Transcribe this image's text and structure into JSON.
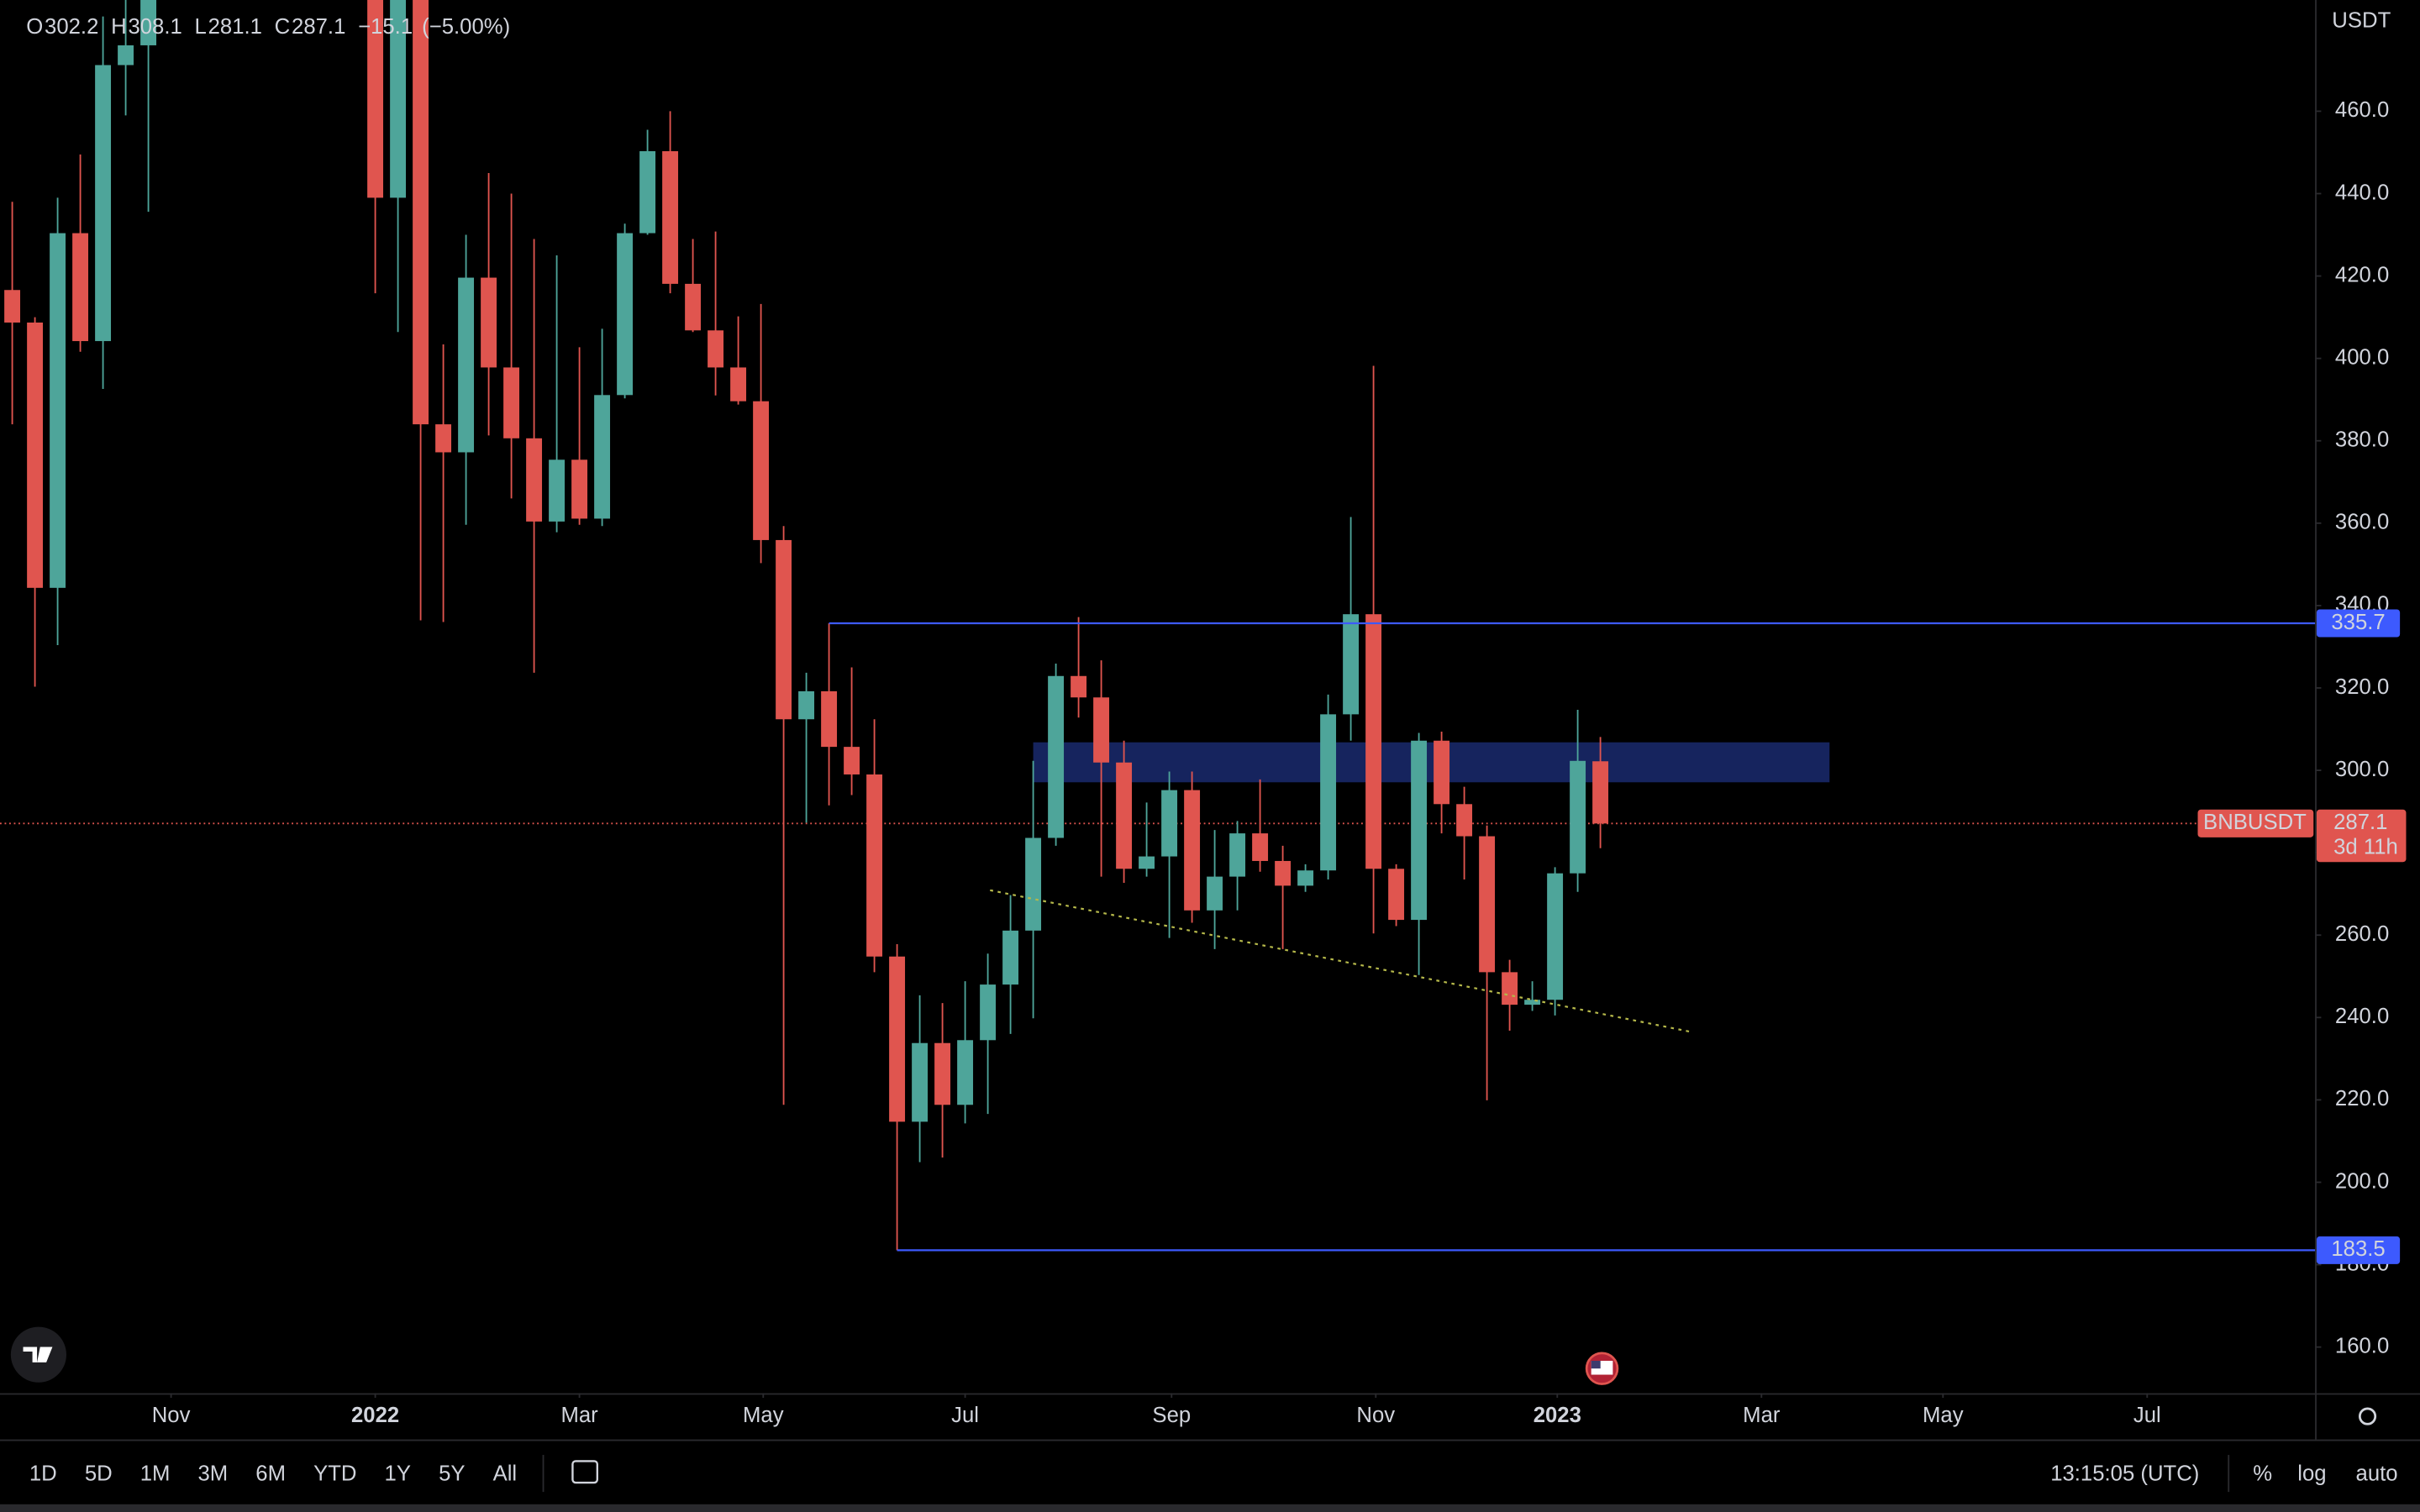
{
  "chart_data": {
    "type": "candlestick",
    "symbol": "BNBUSDT",
    "currency": "USDT",
    "ohlc_labels": [
      "O",
      "H",
      "L",
      "C"
    ],
    "change": "−15.1",
    "change_pct": "(−5.00%)",
    "countdown": "3d 11h",
    "log_scale": false,
    "up_color": "#4ea59a",
    "down_color": "#e0554f",
    "x": [
      0,
      1,
      2,
      3,
      4,
      5,
      6,
      16,
      17,
      18,
      19,
      20,
      21,
      22,
      23,
      24,
      25,
      26,
      27,
      28,
      29,
      30,
      31,
      32,
      33,
      34,
      35,
      36,
      37,
      38,
      39,
      40,
      41,
      42,
      43,
      44,
      45,
      46,
      47,
      48,
      49,
      50,
      51,
      52,
      53,
      54,
      55,
      56,
      57,
      58,
      59,
      60,
      61,
      62,
      63,
      64,
      65,
      66,
      67,
      68,
      69,
      70
    ],
    "open": [
      416.6,
      408.7,
      344.3,
      430.4,
      404.2,
      471.2,
      476,
      500,
      439,
      500,
      384,
      377.2,
      419.6,
      397.8,
      380.6,
      360.4,
      375.4,
      361.1,
      391.1,
      430.4,
      450.3,
      418.1,
      406.8,
      397.8,
      389.6,
      355.9,
      312.4,
      319.2,
      305.7,
      299,
      254.8,
      214.7,
      233.8,
      218.8,
      234.5,
      248,
      261.1,
      283.6,
      322.9,
      317.7,
      301.9,
      276.1,
      279.1,
      295.2,
      266,
      274.2,
      284.7,
      278,
      272,
      275.7,
      313.6,
      337.9,
      276.1,
      263.7,
      307.2,
      291.8,
      284,
      251,
      243.1,
      244.3,
      275,
      302.2
    ],
    "high": [
      438,
      410,
      439,
      449.5,
      483,
      487,
      510,
      510,
      505,
      505,
      403.4,
      430,
      445,
      440,
      429,
      425,
      402.7,
      407.2,
      432.7,
      455.5,
      460,
      429,
      430.8,
      410.2,
      413.2,
      359.3,
      323.7,
      335.7,
      325,
      312.4,
      257.8,
      245.4,
      243.5,
      248.8,
      255.5,
      269.7,
      302.3,
      325.9,
      337.2,
      326.7,
      307.2,
      292.2,
      299.7,
      299.7,
      285.5,
      287.7,
      297.8,
      281.7,
      277.2,
      318.4,
      361.5,
      398.2,
      277.2,
      309.1,
      309.4,
      296,
      286.6,
      254,
      248.8,
      276.5,
      314.7,
      308.1
    ],
    "low": [
      384,
      320.3,
      330.4,
      401.6,
      392.6,
      459,
      435.6,
      415.8,
      406.4,
      336.4,
      336,
      359.6,
      381.3,
      366,
      323.7,
      357.8,
      359.6,
      359.3,
      390.3,
      430,
      415.8,
      406.4,
      391,
      388.8,
      350.3,
      218.8,
      287.3,
      291.5,
      294,
      251,
      183.5,
      204.9,
      206,
      214.3,
      216.6,
      236,
      239.8,
      281.7,
      312.8,
      274.2,
      272.7,
      274.2,
      259.3,
      263,
      256.6,
      266,
      275.4,
      256.6,
      270.5,
      273.5,
      307.2,
      260.4,
      262.2,
      250.3,
      284.7,
      273.5,
      219.9,
      236.8,
      241.6,
      240.5,
      270.5,
      281.1
    ],
    "close": [
      408.7,
      344.3,
      430.4,
      404.2,
      471.2,
      476,
      495,
      439,
      500,
      384,
      377.2,
      419.6,
      397.8,
      380.6,
      360.4,
      375.4,
      361.1,
      391.1,
      430.4,
      450.3,
      418.1,
      406.8,
      397.8,
      389.6,
      355.9,
      312.4,
      319.2,
      305.7,
      299,
      254.8,
      214.7,
      233.8,
      218.8,
      234.5,
      248,
      261.1,
      283.6,
      322.9,
      317.7,
      301.9,
      276.1,
      279.1,
      295.2,
      266,
      274.2,
      284.7,
      278,
      272,
      275.7,
      313.6,
      337.9,
      276.1,
      263.7,
      307.2,
      291.8,
      284,
      251,
      243.1,
      244.3,
      275,
      302.3,
      287.1
    ],
    "xlim": [
      -0.54,
      101.5
    ],
    "xticks": [
      {
        "value": 7.0,
        "label": "Nov"
      },
      {
        "value": 16.0,
        "label": "2022"
      },
      {
        "value": 25.0,
        "label": "Mar"
      },
      {
        "value": 33.1,
        "label": "May"
      },
      {
        "value": 42.0,
        "label": "Jul"
      },
      {
        "value": 51.1,
        "label": "Sep"
      },
      {
        "value": 60.1,
        "label": "Nov"
      },
      {
        "value": 68.1,
        "label": "2023"
      },
      {
        "value": 77.1,
        "label": "Mar"
      },
      {
        "value": 85.1,
        "label": "May"
      },
      {
        "value": 94.1,
        "label": "Jul"
      }
    ],
    "ylim": [
      148.8,
      487
    ],
    "yticks": [
      {
        "value": 160,
        "label": "160.0"
      },
      {
        "value": 180,
        "label": "180.0"
      },
      {
        "value": 200,
        "label": "200.0"
      },
      {
        "value": 220,
        "label": "220.0"
      },
      {
        "value": 240,
        "label": "240.0"
      },
      {
        "value": 260,
        "label": "260.0"
      },
      {
        "value": 280,
        "label": "280.0"
      },
      {
        "value": 300,
        "label": "300.0"
      },
      {
        "value": 320,
        "label": "320.0"
      },
      {
        "value": 340,
        "label": "340.0"
      },
      {
        "value": 360,
        "label": "360.0"
      },
      {
        "value": 380,
        "label": "380.0"
      },
      {
        "value": 400,
        "label": "400.0"
      },
      {
        "value": 420,
        "label": "420.0"
      },
      {
        "value": 440,
        "label": "440.0"
      },
      {
        "value": 460,
        "label": "460.0"
      }
    ],
    "hlines": [
      {
        "value": 335.7,
        "x": 36,
        "color": "#3d5afe"
      },
      {
        "value": 183.5,
        "x": 39,
        "color": "#3d5afe"
      }
    ],
    "zone": {
      "top": 306.8,
      "bottom": 297.1,
      "x0": 45,
      "x1": 80.1,
      "color": "#1a2a6e"
    },
    "trendline": {
      "x0": 43.1,
      "y0": 270.9,
      "x1": 74.1,
      "y1": 236.4,
      "color": "#b5b84a"
    }
  },
  "toolbar": {
    "ranges": [
      "1D",
      "5D",
      "1M",
      "3M",
      "6M",
      "YTD",
      "1Y",
      "5Y",
      "All"
    ],
    "time": "13:15:05 (UTC)",
    "options": [
      "%",
      "log",
      "auto"
    ]
  }
}
